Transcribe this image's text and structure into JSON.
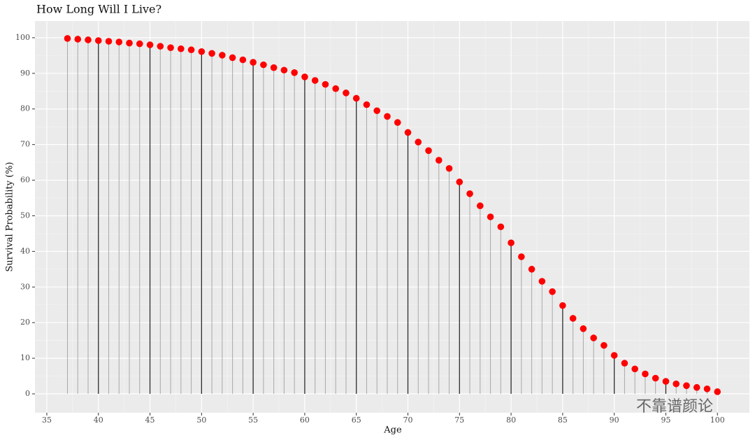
{
  "chart_data": {
    "type": "lollipop",
    "title": "How Long Will I Live?",
    "x_label": "Age",
    "y_label": "Survival Probability (%)",
    "watermark": "不靠谱颜论",
    "x": [
      37,
      38,
      39,
      40,
      41,
      42,
      43,
      44,
      45,
      46,
      47,
      48,
      49,
      50,
      51,
      52,
      53,
      54,
      55,
      56,
      57,
      58,
      59,
      60,
      61,
      62,
      63,
      64,
      65,
      66,
      67,
      68,
      69,
      70,
      71,
      72,
      73,
      74,
      75,
      76,
      77,
      78,
      79,
      80,
      81,
      82,
      83,
      84,
      85,
      86,
      87,
      88,
      89,
      90,
      91,
      92,
      93,
      94,
      95,
      96,
      97,
      98,
      99,
      100
    ],
    "values": [
      99.8,
      99.6,
      99.4,
      99.2,
      99.0,
      98.8,
      98.5,
      98.3,
      98.0,
      97.6,
      97.2,
      96.9,
      96.6,
      96.1,
      95.6,
      95.1,
      94.4,
      93.8,
      93.1,
      92.4,
      91.6,
      90.9,
      90.2,
      89.0,
      88.0,
      86.9,
      85.7,
      84.5,
      83.0,
      81.2,
      79.5,
      77.9,
      76.2,
      73.4,
      70.7,
      68.3,
      65.6,
      63.3,
      59.5,
      56.2,
      52.8,
      49.7,
      46.9,
      42.4,
      38.5,
      35.0,
      31.6,
      28.7,
      24.8,
      21.2,
      18.3,
      15.7,
      13.6,
      10.8,
      8.6,
      7.0,
      5.6,
      4.4,
      3.5,
      2.8,
      2.3,
      1.8,
      1.4,
      0.6
    ],
    "color": "#ff0000",
    "stem_color": "#2b2b2b",
    "stem_minor_color": "#a8a8a8",
    "xlim": [
      33.85,
      103.1
    ],
    "xticks": [
      35,
      40,
      45,
      50,
      55,
      60,
      65,
      70,
      75,
      80,
      85,
      90,
      95,
      100
    ],
    "ylim": [
      -5.3,
      104.7
    ],
    "yticks": [
      0,
      10,
      20,
      30,
      40,
      50,
      60,
      70,
      80,
      90,
      100
    ],
    "grid": true
  }
}
